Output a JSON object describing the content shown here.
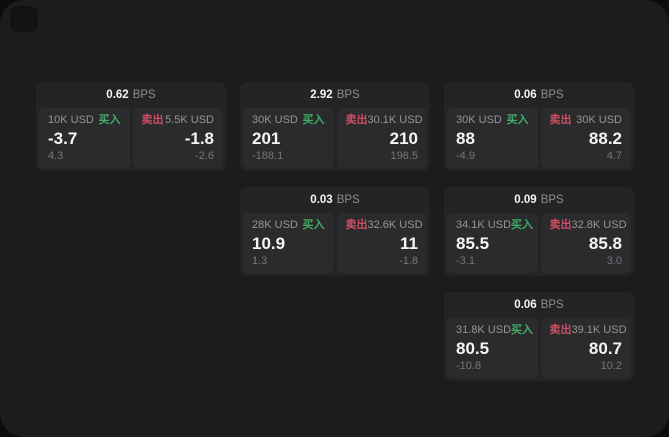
{
  "labels": {
    "unit": "BPS",
    "buy": "买入",
    "sell": "卖出"
  },
  "colors": {
    "buy_green": "#41ad64",
    "sell_red": "#cc4f64",
    "panel_bg": "#1c1c1e",
    "card_bg": "#242427",
    "tile_bg": "#2b2b2e"
  },
  "cards": [
    {
      "bps": "0.62",
      "buy": {
        "amount": "10K USD",
        "price": "-3.7",
        "delta": "4.3"
      },
      "sell": {
        "amount": "5.5K USD",
        "price": "-1.8",
        "delta": "-2.6"
      }
    },
    {
      "bps": "2.92",
      "buy": {
        "amount": "30K USD",
        "price": "201",
        "delta": "-188.1"
      },
      "sell": {
        "amount": "30.1K USD",
        "price": "210",
        "delta": "196.5"
      }
    },
    {
      "bps": "0.06",
      "buy": {
        "amount": "30K USD",
        "price": "88",
        "delta": "-4.9"
      },
      "sell": {
        "amount": "30K USD",
        "price": "88.2",
        "delta": "4.7"
      }
    },
    {
      "bps": "0.03",
      "buy": {
        "amount": "28K USD",
        "price": "10.9",
        "delta": "1.3"
      },
      "sell": {
        "amount": "32.6K USD",
        "price": "11",
        "delta": "-1.8"
      }
    },
    {
      "bps": "0.09",
      "buy": {
        "amount": "34.1K USD",
        "price": "85.5",
        "delta": "-3.1"
      },
      "sell": {
        "amount": "32.8K USD",
        "price": "85.8",
        "delta": "3.0"
      }
    },
    {
      "bps": "0.06",
      "buy": {
        "amount": "31.8K USD",
        "price": "80.5",
        "delta": "-10.8"
      },
      "sell": {
        "amount": "39.1K USD",
        "price": "80.7",
        "delta": "10.2"
      }
    }
  ]
}
